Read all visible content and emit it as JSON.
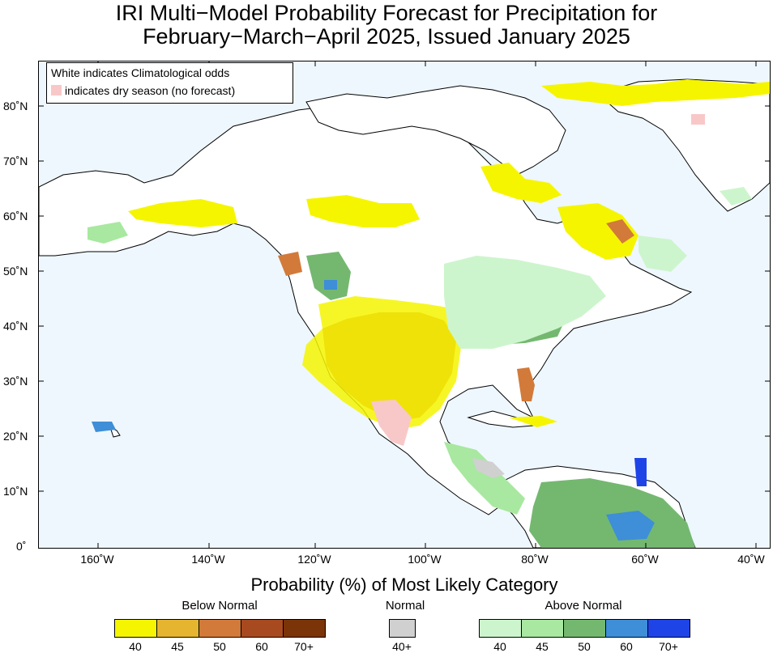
{
  "title": {
    "line1": "IRI Multi−Model Probability Forecast for Precipitation for",
    "line2": "February−March−April 2025, Issued January 2025"
  },
  "info_box": {
    "line1": "White indicates Climatological odds",
    "line2": "indicates dry season (no forecast)"
  },
  "axes": {
    "lat_labels": [
      "80˚N",
      "70˚N",
      "60˚N",
      "50˚N",
      "40˚N",
      "30˚N",
      "20˚N",
      "10˚N",
      "0˚"
    ],
    "lon_labels": [
      "160˚W",
      "140˚W",
      "120˚W",
      "100˚W",
      "80˚W",
      "60˚W",
      "40˚W"
    ]
  },
  "legend": {
    "title": "Probability (%) of Most Likely Category",
    "below_normal": {
      "label": "Below Normal",
      "colors": [
        "#f5f500",
        "#e5b530",
        "#d27a3a",
        "#a84a20",
        "#7a3408"
      ],
      "ticks": [
        "40",
        "45",
        "50",
        "60",
        "70+"
      ]
    },
    "normal": {
      "label": "Normal",
      "colors": [
        "#d0d0d0"
      ],
      "ticks": [
        "40+"
      ]
    },
    "above_normal": {
      "label": "Above Normal",
      "colors": [
        "#cdf5cd",
        "#a8e8a0",
        "#74b870",
        "#3e8ed8",
        "#1e44e8"
      ],
      "ticks": [
        "40",
        "45",
        "50",
        "60",
        "70+"
      ]
    }
  },
  "colors": {
    "ocean": "#eef7fd",
    "land": "#ffffff",
    "dry_season": "#f8c8c8"
  }
}
